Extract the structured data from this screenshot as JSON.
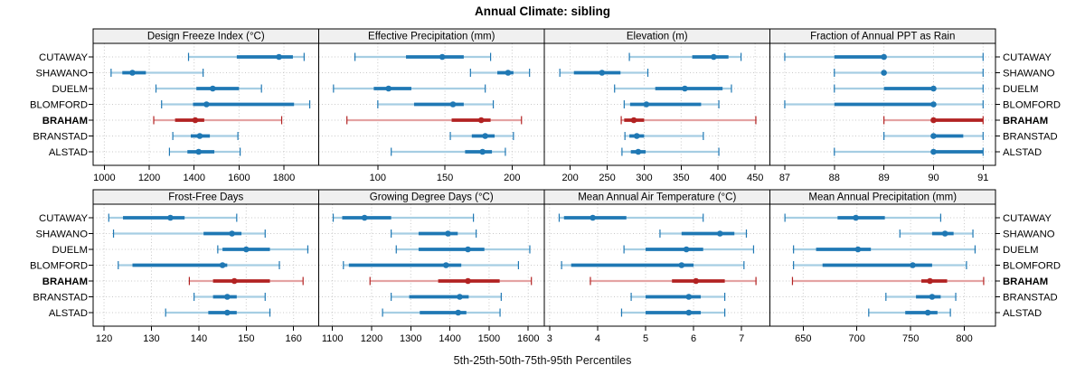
{
  "title": "Annual Climate: sibling",
  "xlabel": "5th-25th-50th-75th-95th Percentiles",
  "percentile_legend": [
    "5th",
    "25th",
    "50th",
    "75th",
    "95th"
  ],
  "categories": [
    "CUTAWAY",
    "SHAWANO",
    "DUELM",
    "BLOMFORD",
    "BRAHAM",
    "BRANSTAD",
    "ALSTAD"
  ],
  "highlight_site": "BRAHAM",
  "colors": {
    "blue": "#1f78b4",
    "blue_light": "#a6cee3",
    "red": "#b22222",
    "red_light": "#e4a3a3",
    "strip_bg": "#f0f0f0",
    "grid": "#c8c8c8",
    "border": "#000000"
  },
  "layout": {
    "rows": 2,
    "cols": 4,
    "grid": "dotted",
    "legend": "none",
    "labels_both_sides": true
  },
  "chart_data": [
    {
      "type": "percentile-range",
      "title": "Design Freeze Index (°C)",
      "xlim": [
        950,
        1955
      ],
      "ticks": [
        1000,
        1200,
        1400,
        1600,
        1800
      ],
      "series": [
        {
          "name": "CUTAWAY",
          "values": [
            1375,
            1590,
            1778,
            1840,
            1890
          ]
        },
        {
          "name": "SHAWANO",
          "values": [
            1030,
            1080,
            1125,
            1185,
            1440
          ]
        },
        {
          "name": "DUELM",
          "values": [
            1230,
            1410,
            1483,
            1600,
            1700
          ]
        },
        {
          "name": "BLOMFORD",
          "values": [
            1255,
            1395,
            1455,
            1845,
            1915
          ]
        },
        {
          "name": "BRAHAM",
          "values": [
            1220,
            1315,
            1405,
            1445,
            1790
          ]
        },
        {
          "name": "BRANSTAD",
          "values": [
            1305,
            1385,
            1425,
            1470,
            1595
          ]
        },
        {
          "name": "ALSTAD",
          "values": [
            1290,
            1370,
            1420,
            1490,
            1605
          ]
        }
      ]
    },
    {
      "type": "percentile-range",
      "title": "Effective Precipitation (mm)",
      "xlim": [
        56,
        224
      ],
      "ticks": [
        100,
        150,
        200
      ],
      "series": [
        {
          "name": "CUTAWAY",
          "values": [
            83,
            121,
            148,
            164,
            184
          ]
        },
        {
          "name": "SHAWANO",
          "values": [
            169,
            189,
            197,
            201,
            213
          ]
        },
        {
          "name": "DUELM",
          "values": [
            67,
            97,
            108,
            125,
            180
          ]
        },
        {
          "name": "BLOMFORD",
          "values": [
            100,
            127,
            156,
            164,
            186
          ]
        },
        {
          "name": "BRAHAM",
          "values": [
            77,
            155,
            177,
            184,
            207
          ]
        },
        {
          "name": "BRANSTAD",
          "values": [
            154,
            170,
            180,
            187,
            201
          ]
        },
        {
          "name": "ALSTAD",
          "values": [
            110,
            165,
            178,
            185,
            195
          ]
        }
      ]
    },
    {
      "type": "percentile-range",
      "title": "Elevation (m)",
      "xlim": [
        165,
        470
      ],
      "ticks": [
        200,
        250,
        300,
        350,
        400,
        450
      ],
      "series": [
        {
          "name": "CUTAWAY",
          "values": [
            280,
            365,
            394,
            414,
            431
          ]
        },
        {
          "name": "SHAWANO",
          "values": [
            186,
            205,
            243,
            268,
            305
          ]
        },
        {
          "name": "DUELM",
          "values": [
            260,
            315,
            355,
            406,
            418
          ]
        },
        {
          "name": "BLOMFORD",
          "values": [
            273,
            281,
            303,
            377,
            401
          ]
        },
        {
          "name": "BRAHAM",
          "values": [
            269,
            273,
            286,
            300,
            451
          ]
        },
        {
          "name": "BRANSTAD",
          "values": [
            274,
            280,
            290,
            300,
            380
          ]
        },
        {
          "name": "ALSTAD",
          "values": [
            270,
            282,
            292,
            302,
            401
          ]
        }
      ]
    },
    {
      "type": "percentile-range",
      "title": "Fraction of Annual PPT as Rain",
      "xlim": [
        86.7,
        91.25
      ],
      "ticks": [
        87,
        88,
        89,
        90,
        91
      ],
      "series": [
        {
          "name": "CUTAWAY",
          "values": [
            87,
            88,
            89,
            89,
            91
          ]
        },
        {
          "name": "SHAWANO",
          "values": [
            88,
            89,
            89,
            89,
            91
          ]
        },
        {
          "name": "DUELM",
          "values": [
            88,
            89,
            90,
            90,
            91
          ]
        },
        {
          "name": "BLOMFORD",
          "values": [
            87,
            88,
            90,
            90,
            91
          ]
        },
        {
          "name": "BRAHAM",
          "values": [
            89,
            90,
            90,
            91,
            91
          ]
        },
        {
          "name": "BRANSTAD",
          "values": [
            89,
            90,
            90,
            90.6,
            91
          ]
        },
        {
          "name": "ALSTAD",
          "values": [
            88,
            90,
            90,
            91,
            91
          ]
        }
      ]
    },
    {
      "type": "percentile-range",
      "title": "Frost-Free Days",
      "xlim": [
        117.7,
        165.3
      ],
      "ticks": [
        120,
        130,
        140,
        150,
        160
      ],
      "series": [
        {
          "name": "CUTAWAY",
          "values": [
            121,
            124,
            134,
            137,
            148
          ]
        },
        {
          "name": "SHAWANO",
          "values": [
            122,
            141,
            147,
            149,
            154
          ]
        },
        {
          "name": "DUELM",
          "values": [
            144,
            145,
            150,
            155,
            163
          ]
        },
        {
          "name": "BLOMFORD",
          "values": [
            123,
            126,
            145,
            146,
            157
          ]
        },
        {
          "name": "BRAHAM",
          "values": [
            138,
            143,
            147.5,
            155,
            162
          ]
        },
        {
          "name": "BRANSTAD",
          "values": [
            139,
            143,
            146,
            148,
            154
          ]
        },
        {
          "name": "ALSTAD",
          "values": [
            133,
            142,
            146,
            148,
            155
          ]
        }
      ]
    },
    {
      "type": "percentile-range",
      "title": "Growing Degree Days (°C)",
      "xlim": [
        1065,
        1641
      ],
      "ticks": [
        1100,
        1200,
        1300,
        1400,
        1500,
        1600
      ],
      "series": [
        {
          "name": "CUTAWAY",
          "values": [
            1102,
            1125,
            1182,
            1250,
            1460
          ]
        },
        {
          "name": "SHAWANO",
          "values": [
            1250,
            1320,
            1395,
            1420,
            1467
          ]
        },
        {
          "name": "DUELM",
          "values": [
            1263,
            1320,
            1446,
            1488,
            1604
          ]
        },
        {
          "name": "BLOMFORD",
          "values": [
            1128,
            1142,
            1390,
            1429,
            1575
          ]
        },
        {
          "name": "BRAHAM",
          "values": [
            1196,
            1370,
            1446,
            1527,
            1608
          ]
        },
        {
          "name": "BRANSTAD",
          "values": [
            1250,
            1296,
            1425,
            1448,
            1531
          ]
        },
        {
          "name": "ALSTAD",
          "values": [
            1228,
            1323,
            1421,
            1442,
            1528
          ]
        }
      ]
    },
    {
      "type": "percentile-range",
      "title": "Mean Annual Air Temperature (°C)",
      "xlim": [
        2.89,
        7.59
      ],
      "ticks": [
        3,
        4,
        5,
        6,
        7
      ],
      "series": [
        {
          "name": "CUTAWAY",
          "values": [
            3.2,
            3.3,
            3.9,
            4.6,
            6.2
          ]
        },
        {
          "name": "SHAWANO",
          "values": [
            5.3,
            5.75,
            6.55,
            6.85,
            7.1
          ]
        },
        {
          "name": "DUELM",
          "values": [
            4.55,
            5.0,
            5.85,
            6.2,
            7.25
          ]
        },
        {
          "name": "BLOMFORD",
          "values": [
            3.25,
            3.45,
            5.75,
            6.0,
            7.05
          ]
        },
        {
          "name": "BRAHAM",
          "values": [
            3.85,
            5.55,
            6.05,
            6.65,
            7.3
          ]
        },
        {
          "name": "BRANSTAD",
          "values": [
            4.7,
            5.0,
            5.9,
            6.15,
            6.65
          ]
        },
        {
          "name": "ALSTAD",
          "values": [
            4.5,
            5.0,
            5.9,
            6.15,
            6.65
          ]
        }
      ]
    },
    {
      "type": "percentile-range",
      "title": "Mean Annual Precipitation (mm)",
      "xlim": [
        619,
        829
      ],
      "ticks": [
        650,
        700,
        750,
        800
      ],
      "series": [
        {
          "name": "CUTAWAY",
          "values": [
            633,
            682,
            699,
            726,
            778
          ]
        },
        {
          "name": "SHAWANO",
          "values": [
            740,
            770,
            782,
            790,
            808
          ]
        },
        {
          "name": "DUELM",
          "values": [
            641,
            662,
            701,
            713,
            810
          ]
        },
        {
          "name": "BLOMFORD",
          "values": [
            641,
            668,
            752,
            770,
            802
          ]
        },
        {
          "name": "BRAHAM",
          "values": [
            640,
            760,
            768,
            784,
            818
          ]
        },
        {
          "name": "BRANSTAD",
          "values": [
            727,
            755,
            770,
            778,
            792
          ]
        },
        {
          "name": "ALSTAD",
          "values": [
            711,
            745,
            766,
            775,
            787
          ]
        }
      ]
    }
  ]
}
